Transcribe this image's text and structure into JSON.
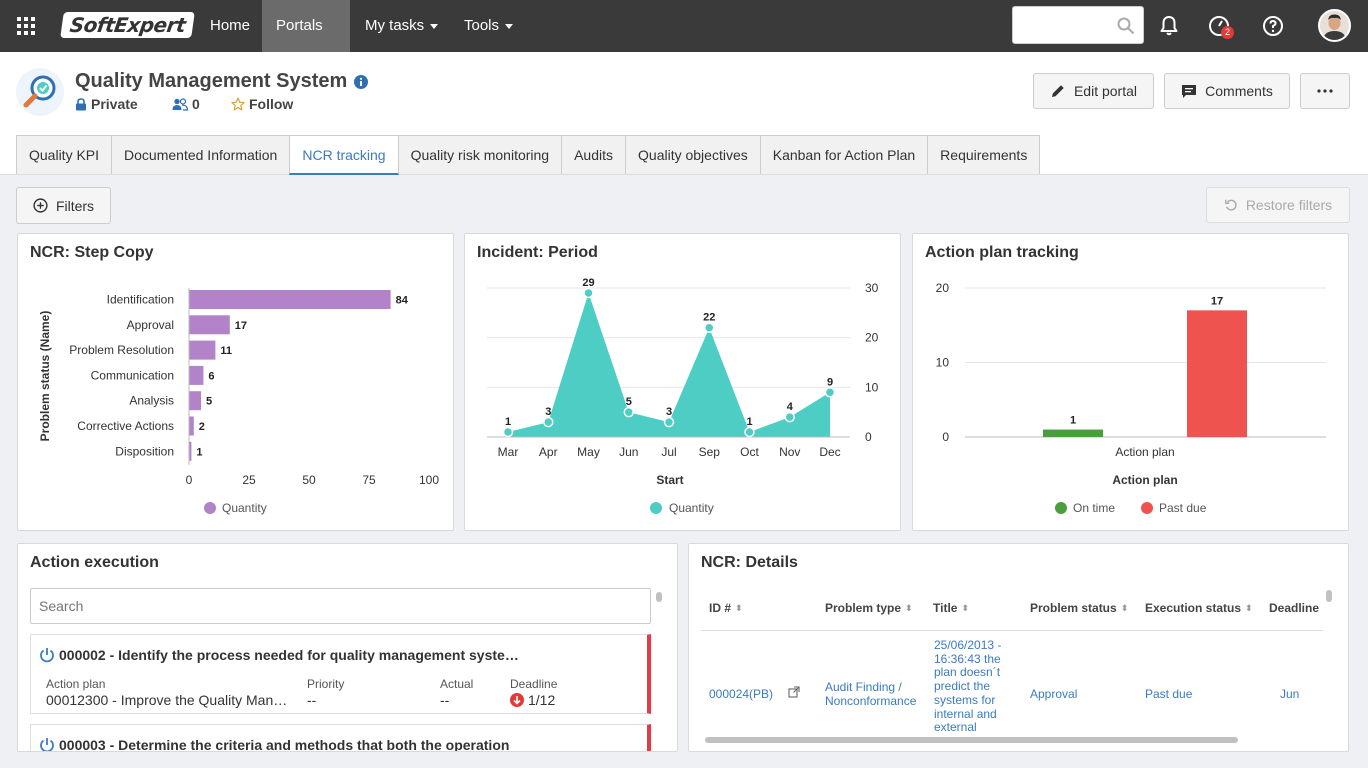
{
  "topbar": {
    "logo_text": "SoftExpert",
    "nav": [
      {
        "label": "Home"
      },
      {
        "label": "Portals"
      },
      {
        "label": "My tasks"
      },
      {
        "label": "Tools"
      }
    ],
    "notification_count": "2"
  },
  "header": {
    "title": "Quality Management System",
    "privacy": "Private",
    "members": "0",
    "follow": "Follow",
    "edit_portal": "Edit portal",
    "comments": "Comments"
  },
  "tabs": [
    {
      "label": "Quality KPI"
    },
    {
      "label": "Documented Information"
    },
    {
      "label": "NCR tracking"
    },
    {
      "label": "Quality risk monitoring"
    },
    {
      "label": "Audits"
    },
    {
      "label": "Quality objectives"
    },
    {
      "label": "Kanban for Action Plan"
    },
    {
      "label": "Requirements"
    }
  ],
  "toolbar": {
    "filters": "Filters",
    "restore_filters": "Restore filters"
  },
  "panels": {
    "ncr_step": {
      "title": "NCR: Step Copy"
    },
    "incident_period": {
      "title": "Incident: Period"
    },
    "action_plan_tracking": {
      "title": "Action plan tracking"
    },
    "action_execution": {
      "title": "Action execution",
      "search_placeholder": "Search",
      "cards": [
        {
          "title": "000002 - Identify the process needed for quality management syste…",
          "action_plan_label": "Action plan",
          "action_plan_value": "00012300 - Improve the Quality Man…",
          "priority_label": "Priority",
          "priority_value": "--",
          "actual_label": "Actual",
          "actual_value": "--",
          "deadline_label": "Deadline",
          "deadline_value": "1/12"
        },
        {
          "title": "000003 - Determine the criteria and methods that both the operation"
        }
      ]
    },
    "ncr_details": {
      "title": "NCR: Details",
      "columns": [
        "ID #",
        "Problem type",
        "Title",
        "Problem status",
        "Execution status",
        "Deadline"
      ],
      "rows": [
        {
          "id": "000024(PB)",
          "problem_type": "Audit Finding / Nonconformance",
          "title": "25/06/2013 - 16:36:43 the plan doesn´t predict the systems for internal and external",
          "problem_status": "Approval",
          "execution_status": "Past due",
          "deadline": "Jun"
        }
      ]
    }
  },
  "chart_data": [
    {
      "type": "bar",
      "orientation": "horizontal",
      "title": "NCR: Step Copy",
      "ylabel": "Problem status (Name)",
      "categories": [
        "Identification",
        "Approval",
        "Problem Resolution",
        "Communication",
        "Analysis",
        "Corrective Actions",
        "Disposition"
      ],
      "series": [
        {
          "name": "Quantity",
          "values": [
            84,
            17,
            11,
            6,
            5,
            2,
            1
          ],
          "color": "#b283c8"
        }
      ],
      "xlim": [
        0,
        100
      ],
      "xticks": [
        "0",
        "25",
        "50",
        "75",
        "100"
      ],
      "legend": "bottom"
    },
    {
      "type": "area",
      "title": "Incident: Period",
      "xlabel": "Start",
      "categories": [
        "Mar",
        "Apr",
        "May",
        "Jun",
        "Jul",
        "Sep",
        "Oct",
        "Nov",
        "Dec"
      ],
      "series": [
        {
          "name": "Quantity",
          "values": [
            1,
            3,
            29,
            5,
            3,
            22,
            1,
            4,
            9
          ],
          "color": "#4ecdc4"
        }
      ],
      "ylim": [
        0,
        30
      ],
      "yticks": [
        "0",
        "10",
        "20",
        "30"
      ],
      "legend": "bottom"
    },
    {
      "type": "bar",
      "title": "Action plan tracking",
      "xlabel": "Action plan",
      "categories": [
        "Action plan"
      ],
      "series": [
        {
          "name": "On time",
          "values": [
            1
          ],
          "color": "#4a9e3f"
        },
        {
          "name": "Past due",
          "values": [
            17
          ],
          "color": "#ef5350"
        }
      ],
      "ylim": [
        0,
        20
      ],
      "yticks": [
        "0",
        "10",
        "20"
      ],
      "legend": "bottom"
    }
  ]
}
